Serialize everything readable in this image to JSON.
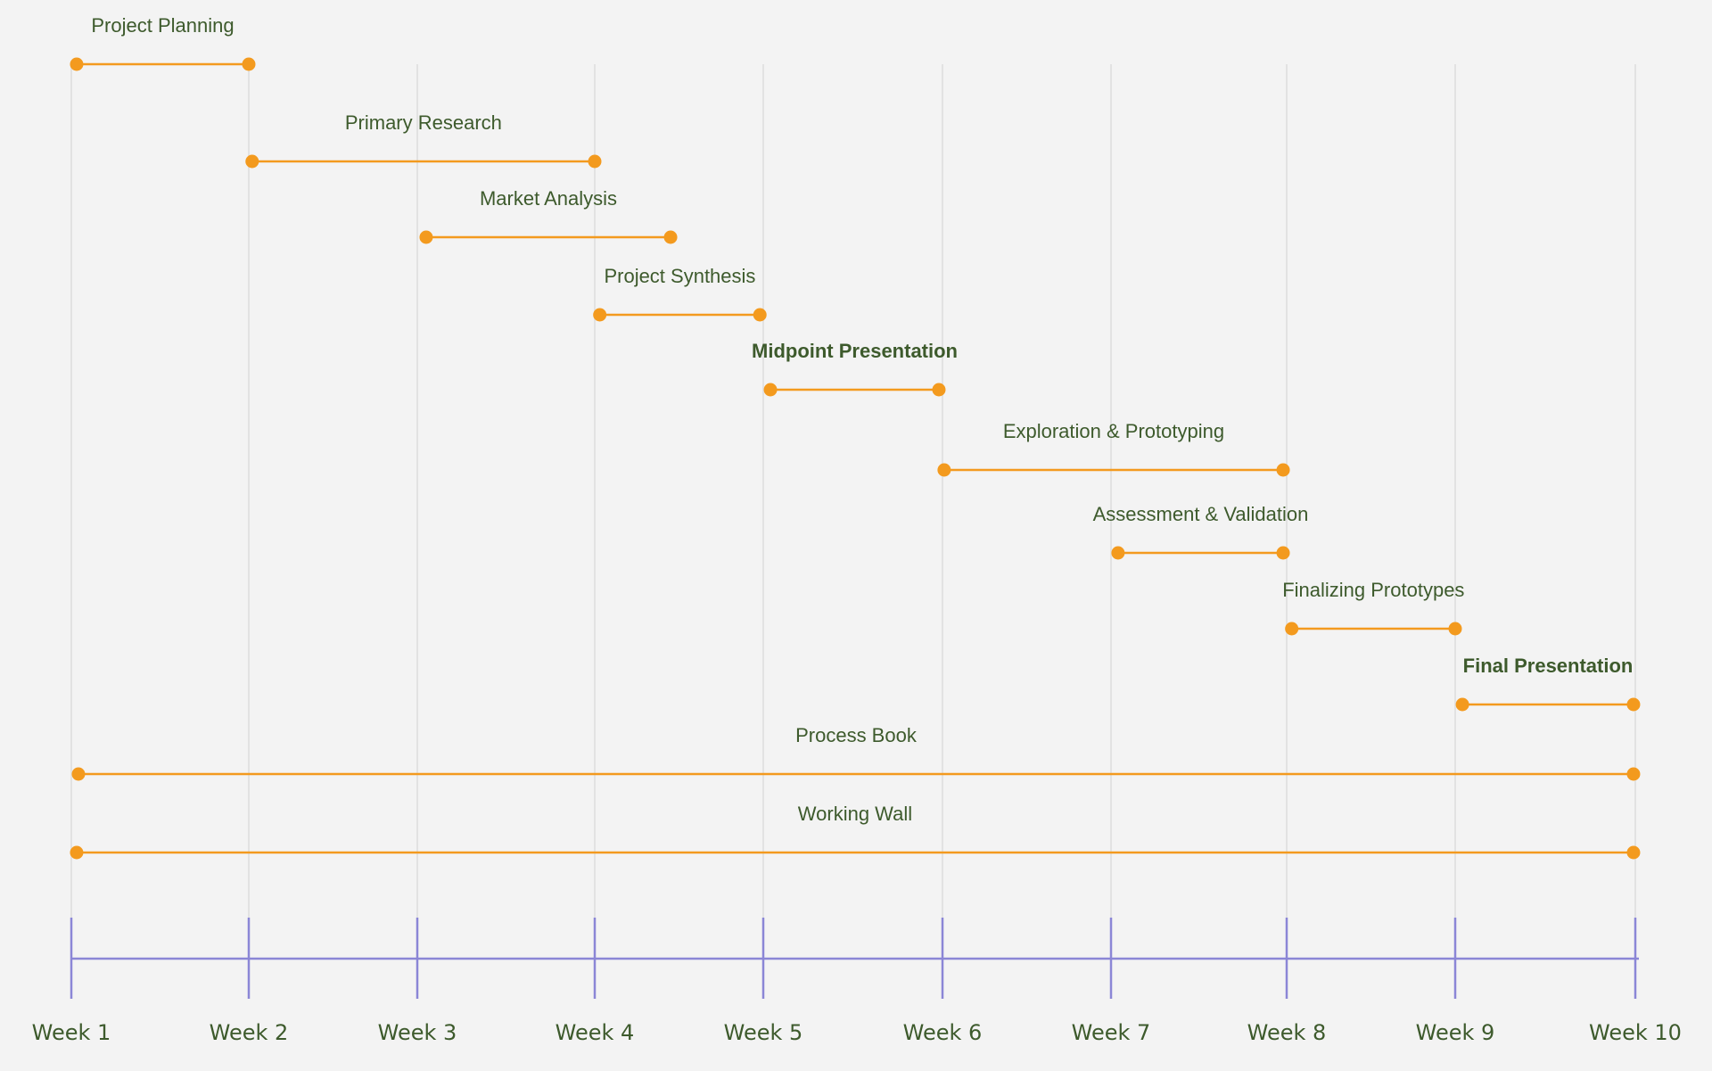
{
  "chart_data": {
    "type": "timeline",
    "weeks": [
      "Week 1",
      "Week 2",
      "Week 3",
      "Week 4",
      "Week 5",
      "Week 6",
      "Week 7",
      "Week 8",
      "Week 9",
      "Week 10"
    ],
    "tasks": [
      {
        "label": "Project Planning",
        "start": 1.03,
        "end": 2.0,
        "milestone": false
      },
      {
        "label": "Primary Research",
        "start": 2.02,
        "end": 4.0,
        "milestone": false
      },
      {
        "label": "Market Analysis",
        "start": 3.05,
        "end": 4.45,
        "milestone": false
      },
      {
        "label": "Project Synthesis",
        "start": 4.03,
        "end": 4.98,
        "milestone": false
      },
      {
        "label": "Midpoint Presentation",
        "start": 5.04,
        "end": 5.98,
        "milestone": true
      },
      {
        "label": "Exploration & Prototyping",
        "start": 6.01,
        "end": 7.98,
        "milestone": false
      },
      {
        "label": "Assessment & Validation",
        "start": 7.04,
        "end": 7.98,
        "milestone": false
      },
      {
        "label": "Finalizing Prototypes",
        "start": 8.03,
        "end": 9.0,
        "milestone": false
      },
      {
        "label": "Final Presentation",
        "start": 9.04,
        "end": 9.99,
        "milestone": true
      },
      {
        "label": "Process Book",
        "start": 1.04,
        "end": 9.99,
        "milestone": false
      },
      {
        "label": "Working Wall",
        "start": 1.03,
        "end": 9.99,
        "milestone": false
      }
    ],
    "colors": {
      "bar": "#f39a1e",
      "text": "#3d5a2c",
      "axis": "#8b86d6",
      "grid": "#e2e2e2",
      "background": "#f3f3f3"
    },
    "grid": true
  }
}
